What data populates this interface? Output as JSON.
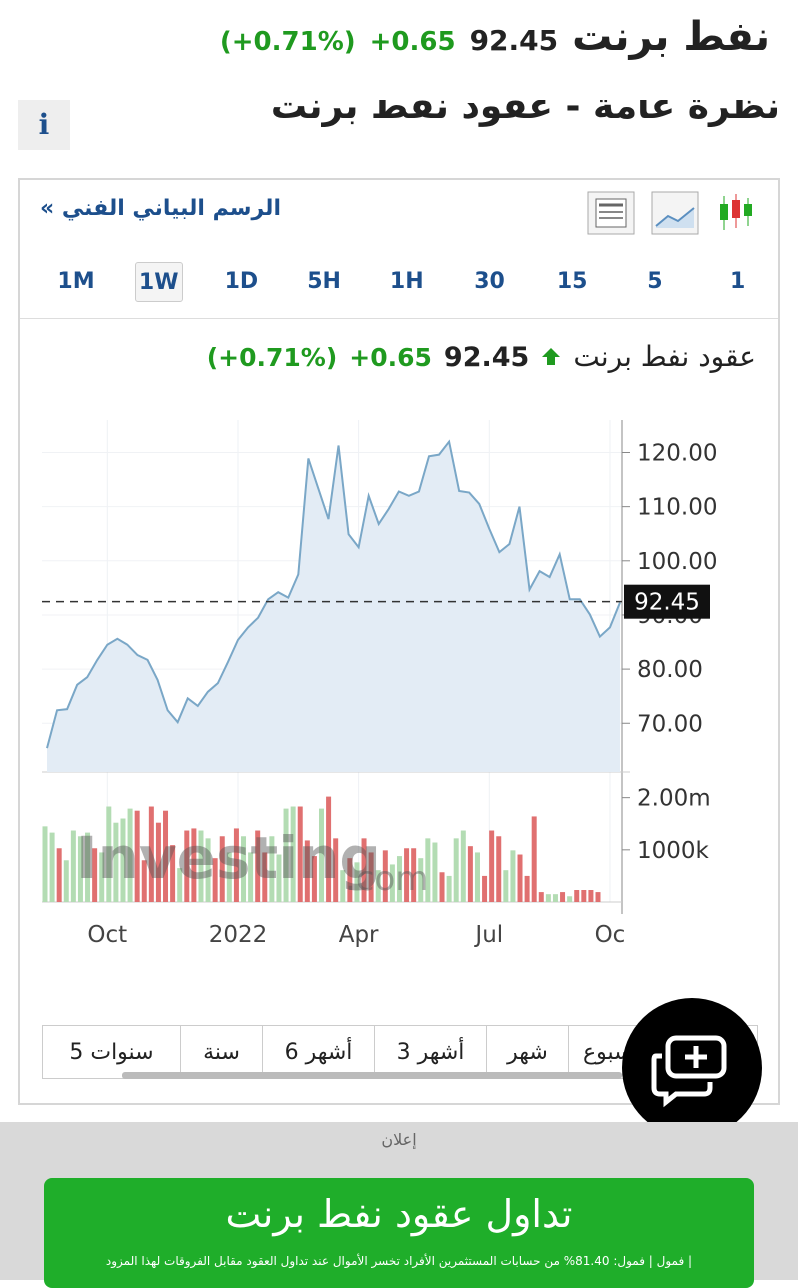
{
  "header": {
    "title": "نفط برنت",
    "price": "92.45",
    "change": "+0.65",
    "change_percent": "(+0.71%)"
  },
  "overview": {
    "title": "نظرة عامة - عقود نفط برنت",
    "info": "i"
  },
  "widget": {
    "link": "الرسم البياني الفني »",
    "intervals": [
      "1M",
      "1W",
      "1D",
      "5H",
      "1H",
      "30",
      "15",
      "5",
      "1"
    ],
    "selected_interval": "1W",
    "periods": [
      "5 سنوات",
      "سنة",
      "6 أشهر",
      "3 أشهر",
      "شهر",
      "أسبوع"
    ],
    "watermark_main": "Investing",
    "watermark_suffix": ".com"
  },
  "chart_data": [
    {
      "type": "line",
      "title": "عقود نفط برنت",
      "last_value": 92.45,
      "change": "+0.65",
      "change_percent": "(+0.71%)",
      "color": "#7aa7c7",
      "fill": "#e3ecf5",
      "grid": true,
      "categories": [
        null,
        null,
        null,
        null,
        null,
        null,
        "Oct",
        null,
        null,
        null,
        null,
        null,
        null,
        null,
        null,
        null,
        null,
        null,
        null,
        "2022",
        null,
        null,
        null,
        null,
        null,
        null,
        null,
        null,
        null,
        null,
        null,
        "Apr",
        null,
        null,
        null,
        null,
        null,
        null,
        null,
        null,
        null,
        null,
        null,
        null,
        "Jul",
        null,
        null,
        null,
        null,
        null,
        null,
        null,
        null,
        null,
        null,
        null,
        "Oc",
        null
      ],
      "values": [
        65.4,
        72.4,
        72.6,
        77.1,
        78.5,
        81.7,
        84.5,
        85.6,
        84.5,
        82.6,
        81.7,
        78.0,
        72.4,
        70.2,
        74.6,
        73.2,
        75.8,
        77.4,
        81.3,
        85.4,
        87.7,
        89.5,
        92.9,
        94.2,
        93.2,
        97.5,
        118.9,
        113.3,
        107.7,
        121.3,
        104.9,
        102.5,
        112.0,
        106.8,
        109.6,
        112.8,
        112.0,
        112.8,
        119.3,
        119.6,
        122.0,
        112.9,
        112.6,
        110.5,
        105.9,
        101.6,
        103.1,
        110.0,
        94.7,
        98.1,
        97.0,
        101.2,
        92.9,
        92.9,
        90.1,
        86.0,
        87.7,
        92.3
      ],
      "ylim": [
        61,
        126
      ],
      "yticks": [
        {
          "value": 70,
          "label": "70.00"
        },
        {
          "value": 80,
          "label": "80.00"
        },
        {
          "value": 90,
          "label": "90.00"
        },
        {
          "value": 100,
          "label": "100.00"
        },
        {
          "value": 110,
          "label": "110.00"
        },
        {
          "value": 120,
          "label": "120.00"
        }
      ]
    },
    {
      "type": "bar",
      "ylim": [
        0,
        2300000
      ],
      "yticks": [
        {
          "value": 1000000,
          "label": "1000k"
        },
        {
          "value": 2000000,
          "label": "2.00m"
        }
      ],
      "values": [
        1450000,
        1330000,
        1030000,
        800000,
        1370000,
        1260000,
        1330000,
        1030000,
        950000,
        1830000,
        1520000,
        1600000,
        1790000,
        1750000,
        800000,
        1830000,
        1520000,
        1750000,
        1090000,
        650000,
        1370000,
        1410000,
        1370000,
        1220000,
        840000,
        1260000,
        950000,
        1410000,
        1260000,
        950000,
        1370000,
        950000,
        1260000,
        910000,
        1790000,
        1830000,
        1830000,
        1180000,
        880000,
        1790000,
        2020000,
        1220000,
        610000,
        840000,
        760000,
        1220000,
        950000,
        610000,
        990000,
        720000,
        880000,
        1030000,
        1030000,
        840000,
        1220000,
        1140000,
        570000,
        500000,
        1220000,
        1370000,
        1070000,
        950000,
        500000,
        1370000,
        1260000,
        610000,
        990000,
        910000,
        500000,
        1640000,
        190000,
        150000,
        150000,
        190000,
        110000,
        230000,
        230000,
        230000,
        190000
      ],
      "colors": [
        "#b3dcb3",
        "#b3dcb3",
        "#e07070",
        "#b3dcb3",
        "#b3dcb3",
        "#b3dcb3",
        "#b3dcb3",
        "#e07070",
        "#b3dcb3",
        "#b3dcb3",
        "#b3dcb3",
        "#b3dcb3",
        "#b3dcb3",
        "#e07070",
        "#e07070",
        "#e07070",
        "#e07070",
        "#e07070",
        "#e07070",
        "#b3dcb3",
        "#e07070",
        "#e07070",
        "#b3dcb3",
        "#b3dcb3",
        "#e07070",
        "#e07070",
        "#b3dcb3",
        "#e07070",
        "#b3dcb3",
        "#b3dcb3",
        "#e07070",
        "#e07070",
        "#b3dcb3",
        "#b3dcb3",
        "#b3dcb3",
        "#b3dcb3",
        "#e07070",
        "#e07070",
        "#e07070",
        "#b3dcb3",
        "#e07070",
        "#e07070",
        "#b3dcb3",
        "#e07070",
        "#b3dcb3",
        "#e07070",
        "#e07070",
        "#b3dcb3",
        "#e07070",
        "#b3dcb3",
        "#b3dcb3",
        "#e07070",
        "#e07070",
        "#b3dcb3",
        "#b3dcb3",
        "#b3dcb3",
        "#e07070",
        "#b3dcb3",
        "#b3dcb3",
        "#b3dcb3",
        "#e07070",
        "#b3dcb3",
        "#e07070",
        "#e07070",
        "#e07070",
        "#b3dcb3",
        "#b3dcb3",
        "#e07070",
        "#e07070",
        "#e07070",
        "#e07070",
        "#b3dcb3",
        "#b3dcb3",
        "#e07070",
        "#b3dcb3",
        "#e07070",
        "#e07070",
        "#e07070",
        "#e07070"
      ]
    }
  ],
  "ad": {
    "label": "إعلان",
    "button": "تداول عقود نفط برنت",
    "disclaimer": "| فمول | فمول: 81.40% من حسابات المستثمرين الأفراد تخسر الأموال عند تداول العقود مقابل الفروقات لهذا المزود"
  }
}
